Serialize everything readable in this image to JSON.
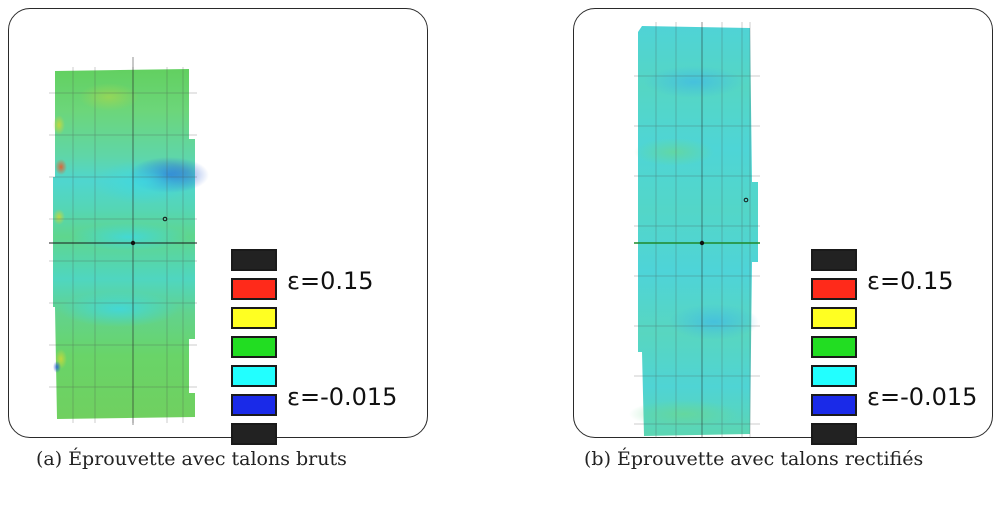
{
  "panels": [
    {
      "caption": "(a) Éprouvette avec talons bruts",
      "legend": [
        {
          "color": "#222222",
          "label": ""
        },
        {
          "color": "#ff2a1a",
          "label": "ε=0.15"
        },
        {
          "color": "#ffff22",
          "label": ""
        },
        {
          "color": "#22dd22",
          "label": ""
        },
        {
          "color": "#22ffff",
          "label": ""
        },
        {
          "color": "#1a2ae8",
          "label": "ε=-0.015"
        },
        {
          "color": "#222222",
          "label": ""
        }
      ]
    },
    {
      "caption": "(b) Éprouvette avec talons rectifiés",
      "legend": [
        {
          "color": "#222222",
          "label": ""
        },
        {
          "color": "#ff2a1a",
          "label": "ε=0.15"
        },
        {
          "color": "#ffff22",
          "label": ""
        },
        {
          "color": "#22dd22",
          "label": ""
        },
        {
          "color": "#22ffff",
          "label": ""
        },
        {
          "color": "#1a2ae8",
          "label": "ε=-0.015"
        },
        {
          "color": "#222222",
          "label": ""
        }
      ]
    }
  ],
  "colors": {
    "border": "#2a2a2a",
    "field_green": "#5cd85a",
    "field_cyan": "#4fd6d8",
    "field_blue": "#2f6fd8"
  }
}
